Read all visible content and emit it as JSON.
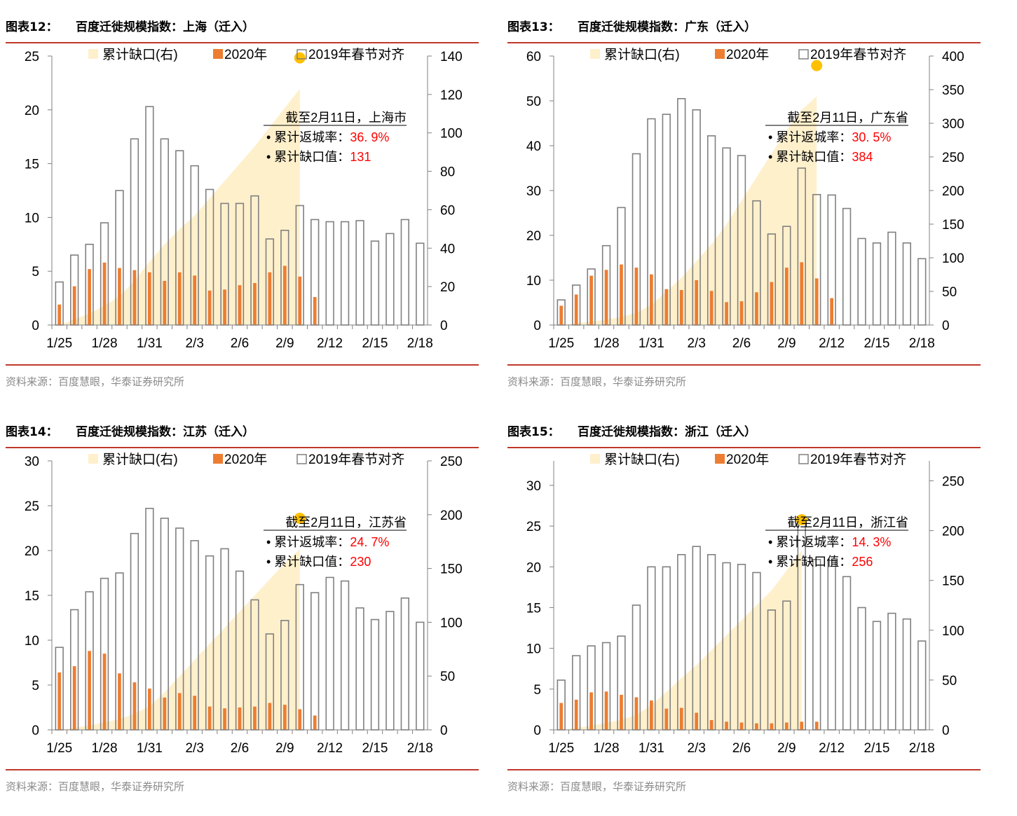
{
  "source": "资料来源：百度慧眼，华泰证券研究所",
  "legend": {
    "gap_label": "累计缺口(右)",
    "y2020_label": "2020年",
    "y2019_label": "2019年春节对齐"
  },
  "colors": {
    "bar_2020": "#ED7D31",
    "bar_2019_edge": "#808080",
    "gap_fill": "#FFF0CC",
    "marker": "#FFC000",
    "highlight_text": "#FF0000",
    "rule": "#C0392B"
  },
  "chart_data": [
    {
      "type": "bar",
      "panel_label": "图表12：",
      "title": "百度迁徙规模指数：上海（迁入）",
      "x": [
        "1/25",
        "1/26",
        "1/27",
        "1/28",
        "1/29",
        "1/30",
        "1/31",
        "2/1",
        "2/2",
        "2/3",
        "2/4",
        "2/5",
        "2/6",
        "2/7",
        "2/8",
        "2/9",
        "2/10",
        "2/11",
        "2/12",
        "2/13",
        "2/14",
        "2/15",
        "2/16",
        "2/17",
        "2/18"
      ],
      "x_tick_labels": [
        "1/25",
        "1/28",
        "1/31",
        "2/3",
        "2/6",
        "2/9",
        "2/12",
        "2/15",
        "2/18"
      ],
      "y_left": {
        "ylim": [
          0,
          25
        ],
        "ticks": [
          0,
          5,
          10,
          15,
          20,
          25
        ]
      },
      "y_right": {
        "ylim": [
          0,
          140
        ],
        "ticks": [
          0,
          20,
          40,
          60,
          80,
          100,
          120,
          140
        ]
      },
      "series": [
        {
          "name": "2020年",
          "axis": "left",
          "values": [
            1.9,
            3.6,
            5.2,
            5.8,
            5.3,
            5.1,
            4.9,
            4.1,
            4.9,
            4.6,
            3.2,
            3.3,
            3.7,
            3.9,
            4.9,
            5.5,
            4.5,
            2.6,
            null,
            null,
            null,
            null,
            null,
            null,
            null
          ]
        },
        {
          "name": "2019年春节对齐",
          "axis": "left",
          "values": [
            4.0,
            6.5,
            7.5,
            9.5,
            12.5,
            17.3,
            20.3,
            17.3,
            16.2,
            14.8,
            12.6,
            11.3,
            11.3,
            12.0,
            8.0,
            8.8,
            11.1,
            9.8,
            9.6,
            9.6,
            9.7,
            7.8,
            8.5,
            9.8,
            7.6
          ]
        },
        {
          "name": "累计缺口(右)",
          "axis": "right",
          "kind": "area",
          "values": [
            0,
            3,
            6,
            10,
            15,
            23,
            33,
            42,
            50,
            57,
            66,
            75,
            84,
            93,
            103,
            113,
            123,
            null,
            null,
            null,
            null,
            null,
            null,
            null,
            null
          ]
        }
      ],
      "annotation": {
        "heading": "截至2月11日，上海市",
        "rate_label": "• 累计返城率：",
        "rate_value": "36. 9%",
        "gap_label": "• 累计缺口值：",
        "gap_value": "131"
      }
    },
    {
      "type": "bar",
      "panel_label": "图表13：",
      "title": "百度迁徙规模指数：广东（迁入）",
      "x": [
        "1/25",
        "1/26",
        "1/27",
        "1/28",
        "1/29",
        "1/30",
        "1/31",
        "2/1",
        "2/2",
        "2/3",
        "2/4",
        "2/5",
        "2/6",
        "2/7",
        "2/8",
        "2/9",
        "2/10",
        "2/11",
        "2/12",
        "2/13",
        "2/14",
        "2/15",
        "2/16",
        "2/17",
        "2/18"
      ],
      "x_tick_labels": [
        "1/25",
        "1/28",
        "1/31",
        "2/3",
        "2/6",
        "2/9",
        "2/12",
        "2/15",
        "2/18"
      ],
      "y_left": {
        "ylim": [
          0,
          60
        ],
        "ticks": [
          0,
          10,
          20,
          30,
          40,
          50,
          60
        ]
      },
      "y_right": {
        "ylim": [
          0,
          400
        ],
        "ticks": [
          0,
          50,
          100,
          150,
          200,
          250,
          300,
          350,
          400
        ]
      },
      "series": [
        {
          "name": "2020年",
          "axis": "left",
          "values": [
            4.3,
            6.8,
            11.0,
            12.3,
            13.5,
            12.8,
            11.3,
            8.0,
            7.8,
            10.0,
            7.6,
            5.1,
            5.3,
            7.3,
            9.6,
            12.8,
            14.0,
            10.4,
            6.0,
            null,
            null,
            null,
            null,
            null,
            null
          ]
        },
        {
          "name": "2019年春节对齐",
          "axis": "left",
          "values": [
            5.6,
            8.9,
            12.5,
            17.7,
            26.2,
            38.2,
            46.0,
            47.0,
            50.5,
            48.0,
            42.2,
            39.5,
            37.8,
            27.7,
            20.3,
            22.0,
            35.0,
            29.1,
            29.0,
            26.0,
            19.3,
            18.3,
            20.7,
            18.3,
            14.8
          ]
        },
        {
          "name": "累计缺口(右)",
          "axis": "right",
          "kind": "area",
          "values": [
            0,
            3,
            5,
            8,
            12,
            18,
            30,
            50,
            70,
            95,
            120,
            150,
            185,
            220,
            255,
            290,
            320,
            340,
            null,
            null,
            null,
            null,
            null,
            null,
            null
          ]
        }
      ],
      "annotation": {
        "heading": "截至2月11日，广东省",
        "rate_label": "• 累计返城率：",
        "rate_value": "30. 5%",
        "gap_label": "• 累计缺口值：",
        "gap_value": "384"
      }
    },
    {
      "type": "bar",
      "panel_label": "图表14：",
      "title": "百度迁徙规模指数：江苏（迁入）",
      "x": [
        "1/25",
        "1/26",
        "1/27",
        "1/28",
        "1/29",
        "1/30",
        "1/31",
        "2/1",
        "2/2",
        "2/3",
        "2/4",
        "2/5",
        "2/6",
        "2/7",
        "2/8",
        "2/9",
        "2/10",
        "2/11",
        "2/12",
        "2/13",
        "2/14",
        "2/15",
        "2/16",
        "2/17",
        "2/18"
      ],
      "x_tick_labels": [
        "1/25",
        "1/28",
        "1/31",
        "2/3",
        "2/6",
        "2/9",
        "2/12",
        "2/15",
        "2/18"
      ],
      "y_left": {
        "ylim": [
          0,
          30
        ],
        "ticks": [
          0,
          5,
          10,
          15,
          20,
          25,
          30
        ]
      },
      "y_right": {
        "ylim": [
          0,
          250
        ],
        "ticks": [
          0,
          50,
          100,
          150,
          200,
          250
        ]
      },
      "series": [
        {
          "name": "2020年",
          "axis": "left",
          "values": [
            6.4,
            7.1,
            8.8,
            8.5,
            6.3,
            5.3,
            4.6,
            3.6,
            4.1,
            3.8,
            2.6,
            2.4,
            2.5,
            2.6,
            3.0,
            2.8,
            2.3,
            1.6,
            null,
            null,
            null,
            null,
            null,
            null,
            null
          ]
        },
        {
          "name": "2019年春节对齐",
          "axis": "left",
          "values": [
            9.2,
            13.4,
            15.4,
            16.9,
            17.5,
            21.9,
            24.7,
            23.6,
            22.5,
            21.1,
            19.4,
            20.2,
            17.7,
            14.5,
            10.7,
            12.2,
            16.2,
            15.3,
            17.0,
            16.6,
            13.6,
            12.3,
            13.2,
            14.7,
            12.0
          ]
        },
        {
          "name": "累计缺口(右)",
          "axis": "right",
          "kind": "area",
          "values": [
            0,
            2,
            4,
            7,
            10,
            15,
            22,
            35,
            50,
            65,
            80,
            95,
            110,
            125,
            140,
            155,
            168,
            null,
            null,
            null,
            null,
            null,
            null,
            null,
            null
          ]
        }
      ],
      "annotation": {
        "heading": "截至2月11日，江苏省",
        "rate_label": "• 累计返城率：",
        "rate_value": "24. 7%",
        "gap_label": "• 累计缺口值：",
        "gap_value": "230"
      }
    },
    {
      "type": "bar",
      "panel_label": "图表15：",
      "title": "百度迁徙规模指数：浙江（迁入）",
      "x": [
        "1/25",
        "1/26",
        "1/27",
        "1/28",
        "1/29",
        "1/30",
        "1/31",
        "2/1",
        "2/2",
        "2/3",
        "2/4",
        "2/5",
        "2/6",
        "2/7",
        "2/8",
        "2/9",
        "2/10",
        "2/11",
        "2/12",
        "2/13",
        "2/14",
        "2/15",
        "2/16",
        "2/17",
        "2/18"
      ],
      "x_tick_labels": [
        "1/25",
        "1/28",
        "1/31",
        "2/3",
        "2/6",
        "2/9",
        "2/12",
        "2/15",
        "2/18"
      ],
      "y_left": {
        "ylim": [
          0,
          33
        ],
        "ticks": [
          0,
          5,
          10,
          15,
          20,
          25,
          30
        ]
      },
      "y_right": {
        "ylim": [
          0,
          270
        ],
        "ticks": [
          0,
          50,
          100,
          150,
          200,
          250
        ]
      },
      "series": [
        {
          "name": "2020年",
          "axis": "left",
          "values": [
            3.3,
            3.7,
            4.6,
            4.7,
            4.3,
            4.0,
            3.6,
            2.6,
            2.7,
            2.1,
            1.2,
            1.0,
            0.9,
            0.8,
            0.8,
            0.9,
            1.0,
            1.0,
            null,
            null,
            null,
            null,
            null,
            null,
            null
          ]
        },
        {
          "name": "2019年春节对齐",
          "axis": "left",
          "values": [
            6.1,
            9.1,
            10.3,
            10.7,
            11.5,
            15.3,
            20.0,
            20.0,
            21.5,
            22.5,
            21.5,
            20.5,
            20.3,
            19.3,
            14.7,
            15.8,
            25.7,
            20.9,
            20.8,
            18.8,
            15.0,
            13.3,
            14.3,
            13.6,
            10.9
          ]
        },
        {
          "name": "累计缺口(右)",
          "axis": "right",
          "kind": "area",
          "values": [
            0,
            2,
            4,
            7,
            10,
            15,
            25,
            38,
            52,
            65,
            80,
            95,
            110,
            125,
            140,
            160,
            180,
            null,
            null,
            null,
            null,
            null,
            null,
            null,
            null
          ]
        }
      ],
      "annotation": {
        "heading": "截至2月11日，浙江省",
        "rate_label": "• 累计返城率：",
        "rate_value": "14. 3%",
        "gap_label": "• 累计缺口值：",
        "gap_value": "256"
      }
    }
  ]
}
